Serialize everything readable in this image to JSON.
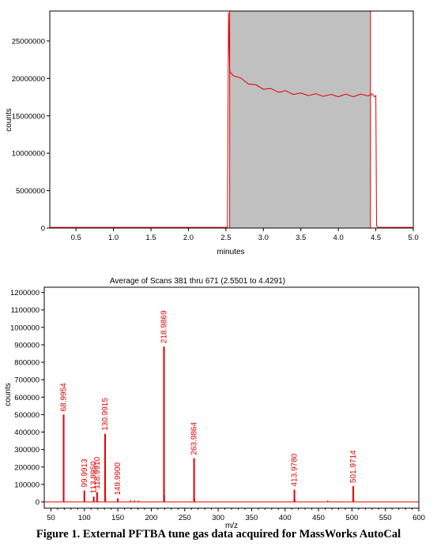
{
  "caption": "Figure 1. External PFTBA tune gas data acquired for MassWorks AutoCal",
  "colors": {
    "trace": "#e00000",
    "shade": "#c0c0c0",
    "axis": "#000000"
  },
  "chart_data": [
    {
      "type": "line",
      "title": "",
      "xlabel": "minutes",
      "ylabel": "counts",
      "xlim": [
        0.15,
        5.0
      ],
      "ylim": [
        0,
        29000000
      ],
      "x_ticks": [
        0.5,
        1.0,
        1.5,
        2.0,
        2.5,
        3.0,
        3.5,
        4.0,
        4.5,
        5.0
      ],
      "x_tick_labels": [
        "0.5",
        "1.0",
        "1.5",
        "2.0",
        "2.5",
        "3.0",
        "3.5",
        "4.0",
        "4.5",
        "5.0"
      ],
      "y_ticks": [
        0,
        5000000,
        10000000,
        15000000,
        20000000,
        25000000
      ],
      "y_tick_labels": [
        "0",
        "5000000",
        "10000000",
        "15000000",
        "20000000",
        "25000000"
      ],
      "shaded_region": [
        2.5501,
        4.4291
      ],
      "series": [
        {
          "x": [
            0.15,
            2.5,
            2.52,
            2.535,
            2.55,
            2.56,
            2.6,
            2.7,
            2.8,
            2.9,
            3.0,
            3.1,
            3.2,
            3.3,
            3.4,
            3.5,
            3.6,
            3.7,
            3.8,
            3.9,
            4.0,
            4.1,
            4.2,
            4.3,
            4.4,
            4.45,
            4.48,
            4.5,
            4.51,
            4.53,
            4.6,
            5.0
          ],
          "y": [
            100000,
            100000,
            100000,
            28800000,
            21000000,
            20800000,
            20500000,
            19900000,
            19400000,
            19000000,
            18700000,
            18500000,
            18300000,
            18200000,
            18000000,
            17900000,
            17850000,
            17800000,
            17750000,
            17700000,
            17700000,
            17750000,
            17700000,
            17750000,
            17800000,
            17800000,
            17700000,
            17700000,
            300000,
            100000,
            100000,
            100000
          ]
        }
      ]
    },
    {
      "type": "bar",
      "title": "Average of Scans 381 thru 671 (2.5501 to 4.4291)",
      "xlabel": "m/z",
      "ylabel": "counts",
      "xlim": [
        40,
        600
      ],
      "ylim": [
        0,
        1230000
      ],
      "x_ticks": [
        50,
        100,
        150,
        200,
        250,
        300,
        350,
        400,
        450,
        500,
        550,
        600
      ],
      "x_tick_labels": [
        "50",
        "100",
        "150",
        "200",
        "250",
        "300",
        "350",
        "400",
        "450",
        "500",
        "550",
        "600"
      ],
      "y_ticks": [
        0,
        100000,
        200000,
        300000,
        400000,
        500000,
        600000,
        700000,
        800000,
        900000,
        1000000,
        1100000,
        1200000
      ],
      "y_tick_labels": [
        "0",
        "100000",
        "200000",
        "300000",
        "400000",
        "500000",
        "600000",
        "700000",
        "800000",
        "900000",
        "1000000",
        "1100000",
        "1200000"
      ],
      "peaks": [
        {
          "mz": 68.9954,
          "intensity": 500000,
          "label": "68.9954"
        },
        {
          "mz": 99.9913,
          "intensity": 65000,
          "label": "99.9913"
        },
        {
          "mz": 113.995,
          "intensity": 30000,
          "label": "113.9950"
        },
        {
          "mz": 118.991,
          "intensity": 55000,
          "label": "118.9910"
        },
        {
          "mz": 130.9915,
          "intensity": 390000,
          "label": "130.9915"
        },
        {
          "mz": 149.99,
          "intensity": 20000,
          "label": "149.9900"
        },
        {
          "mz": 218.9869,
          "intensity": 890000,
          "label": "218.9869"
        },
        {
          "mz": 263.9864,
          "intensity": 250000,
          "label": "263.9864"
        },
        {
          "mz": 413.978,
          "intensity": 70000,
          "label": "413.9780"
        },
        {
          "mz": 501.9714,
          "intensity": 90000,
          "label": "501.9714"
        }
      ],
      "minor_peaks": [
        {
          "mz": 131.9,
          "intensity": 22000
        },
        {
          "mz": 169.0,
          "intensity": 12000
        },
        {
          "mz": 175.0,
          "intensity": 10000
        },
        {
          "mz": 180.9,
          "intensity": 8000
        },
        {
          "mz": 219.9,
          "intensity": 40000
        },
        {
          "mz": 264.9,
          "intensity": 20000
        },
        {
          "mz": 414.9,
          "intensity": 15000
        },
        {
          "mz": 463.9,
          "intensity": 10000
        },
        {
          "mz": 502.9,
          "intensity": 12000
        }
      ]
    }
  ]
}
